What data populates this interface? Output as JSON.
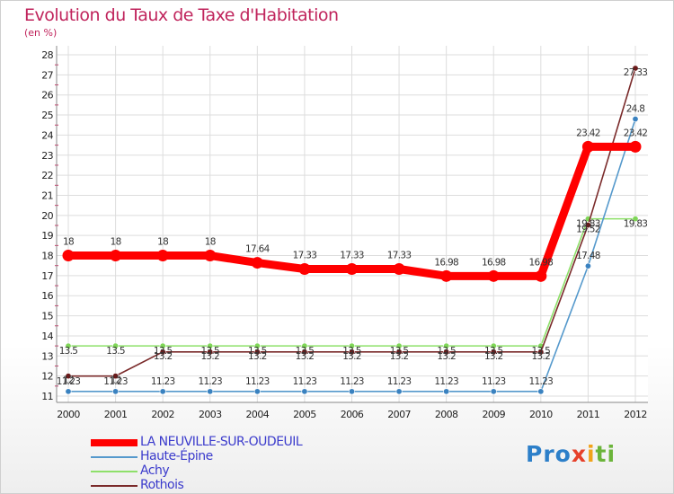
{
  "title": "Evolution du Taux de Taxe d'Habitation",
  "unit": "(en %)",
  "logo": {
    "p1": "Pro",
    "p2": "x",
    "p3": "i",
    "p4": "ti"
  },
  "colors": {
    "main": "#ff0000",
    "haute_epine": "#5599cc",
    "achy": "#8ee06a",
    "rothois": "#7a2a2a",
    "title": "#c0245c",
    "legend_text": "#3b3bcc",
    "grid": "#dddddd"
  },
  "chart_data": {
    "type": "line",
    "title": "Evolution du Taux de Taxe d'Habitation",
    "ylabel": "(en %)",
    "xlabel": "",
    "ylim": [
      11,
      28
    ],
    "grid": true,
    "legend_position": "bottom-left",
    "x": [
      "2000",
      "2001",
      "2002",
      "2003",
      "2004",
      "2005",
      "2006",
      "2007",
      "2008",
      "2009",
      "2010",
      "2011",
      "2012"
    ],
    "yticks": [
      "11",
      "12",
      "13",
      "14",
      "15",
      "16",
      "17",
      "18",
      "19",
      "20",
      "21",
      "22",
      "23",
      "24",
      "25",
      "26",
      "27",
      "28"
    ],
    "series": [
      {
        "key": "main",
        "name": "LA NEUVILLE-SUR-OUDEUIL",
        "values": [
          18,
          18,
          18,
          18,
          17.64,
          17.33,
          17.33,
          17.33,
          16.98,
          16.98,
          16.98,
          23.42,
          23.42
        ],
        "labels": [
          "18",
          "18",
          "18",
          "18",
          "17.64",
          "17.33",
          "17.33",
          "17.33",
          "16.98",
          "16.98",
          "16.98",
          "23.42",
          "23.42"
        ]
      },
      {
        "key": "haute_epine",
        "name": "Haute-Épine",
        "values": [
          11.23,
          11.23,
          11.23,
          11.23,
          11.23,
          11.23,
          11.23,
          11.23,
          11.23,
          11.23,
          11.23,
          17.48,
          24.8
        ],
        "labels": [
          "11.23",
          "11.23",
          "11.23",
          "11.23",
          "11.23",
          "11.23",
          "11.23",
          "11.23",
          "11.23",
          "11.23",
          "11.23",
          "17.48",
          "24.8"
        ]
      },
      {
        "key": "achy",
        "name": "Achy",
        "values": [
          13.5,
          13.5,
          13.5,
          13.5,
          13.5,
          13.5,
          13.5,
          13.5,
          13.5,
          13.5,
          13.5,
          19.83,
          19.83
        ],
        "labels": [
          "13.5",
          "13.5",
          "13.5",
          "13.5",
          "13.5",
          "13.5",
          "13.5",
          "13.5",
          "13.5",
          "13.5",
          "13.5",
          "19.83",
          "19.83"
        ]
      },
      {
        "key": "rothois",
        "name": "Rothois",
        "values": [
          12,
          12,
          13.2,
          13.2,
          13.2,
          13.2,
          13.2,
          13.2,
          13.2,
          13.2,
          13.2,
          19.52,
          27.33
        ],
        "labels": [
          "12",
          "12",
          "13.2",
          "13.2",
          "13.2",
          "13.2",
          "13.2",
          "13.2",
          "13.2",
          "13.2",
          "13.2",
          "19.52",
          "27.33"
        ]
      }
    ]
  }
}
